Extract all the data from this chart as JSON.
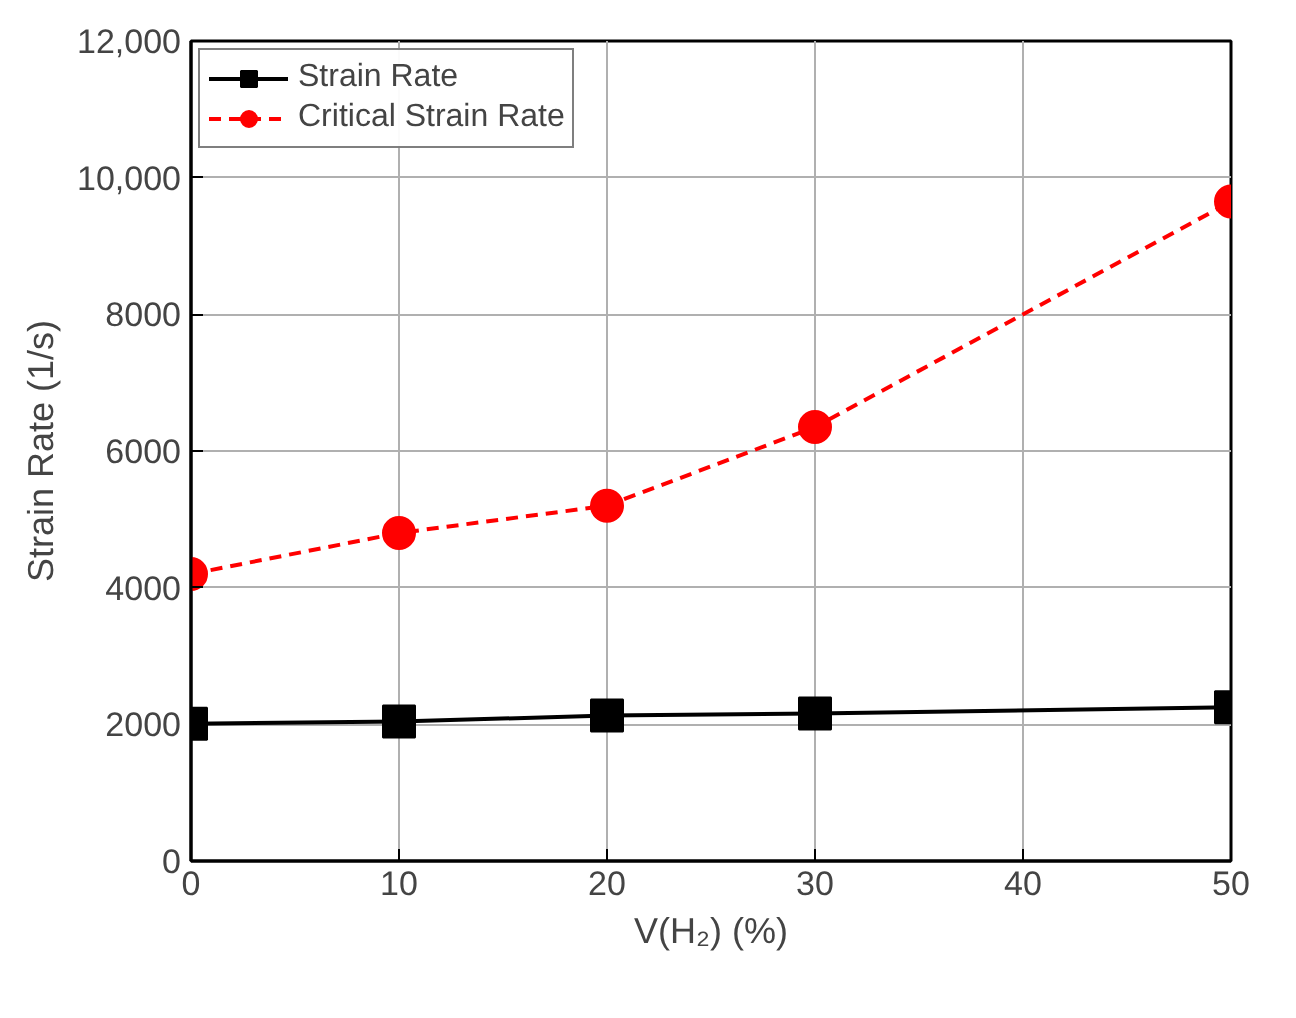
{
  "chart_data": {
    "type": "line",
    "xlabel": "V(H₂) (%)",
    "ylabel": "Strain Rate (1/s)",
    "x": [
      0,
      10,
      20,
      30,
      50
    ],
    "series": [
      {
        "name": "Strain Rate",
        "color": "#000000",
        "marker": "square",
        "line_style": "solid",
        "values": [
          2010,
          2040,
          2130,
          2160,
          2250
        ]
      },
      {
        "name": "Critical Strain Rate",
        "color": "#ff0000",
        "marker": "circle",
        "line_style": "dashed",
        "values": [
          4200,
          4800,
          5200,
          6350,
          9650
        ]
      }
    ],
    "xlim": [
      0,
      50
    ],
    "xticks": [
      0,
      10,
      20,
      30,
      40,
      50
    ],
    "ylim": [
      0,
      12000
    ],
    "yticks": [
      0,
      2000,
      4000,
      6000,
      8000,
      {
        "value": 10000,
        "label": "10,000"
      },
      {
        "value": 12000,
        "label": "12,000"
      }
    ],
    "grid": true,
    "legend": "top left"
  }
}
